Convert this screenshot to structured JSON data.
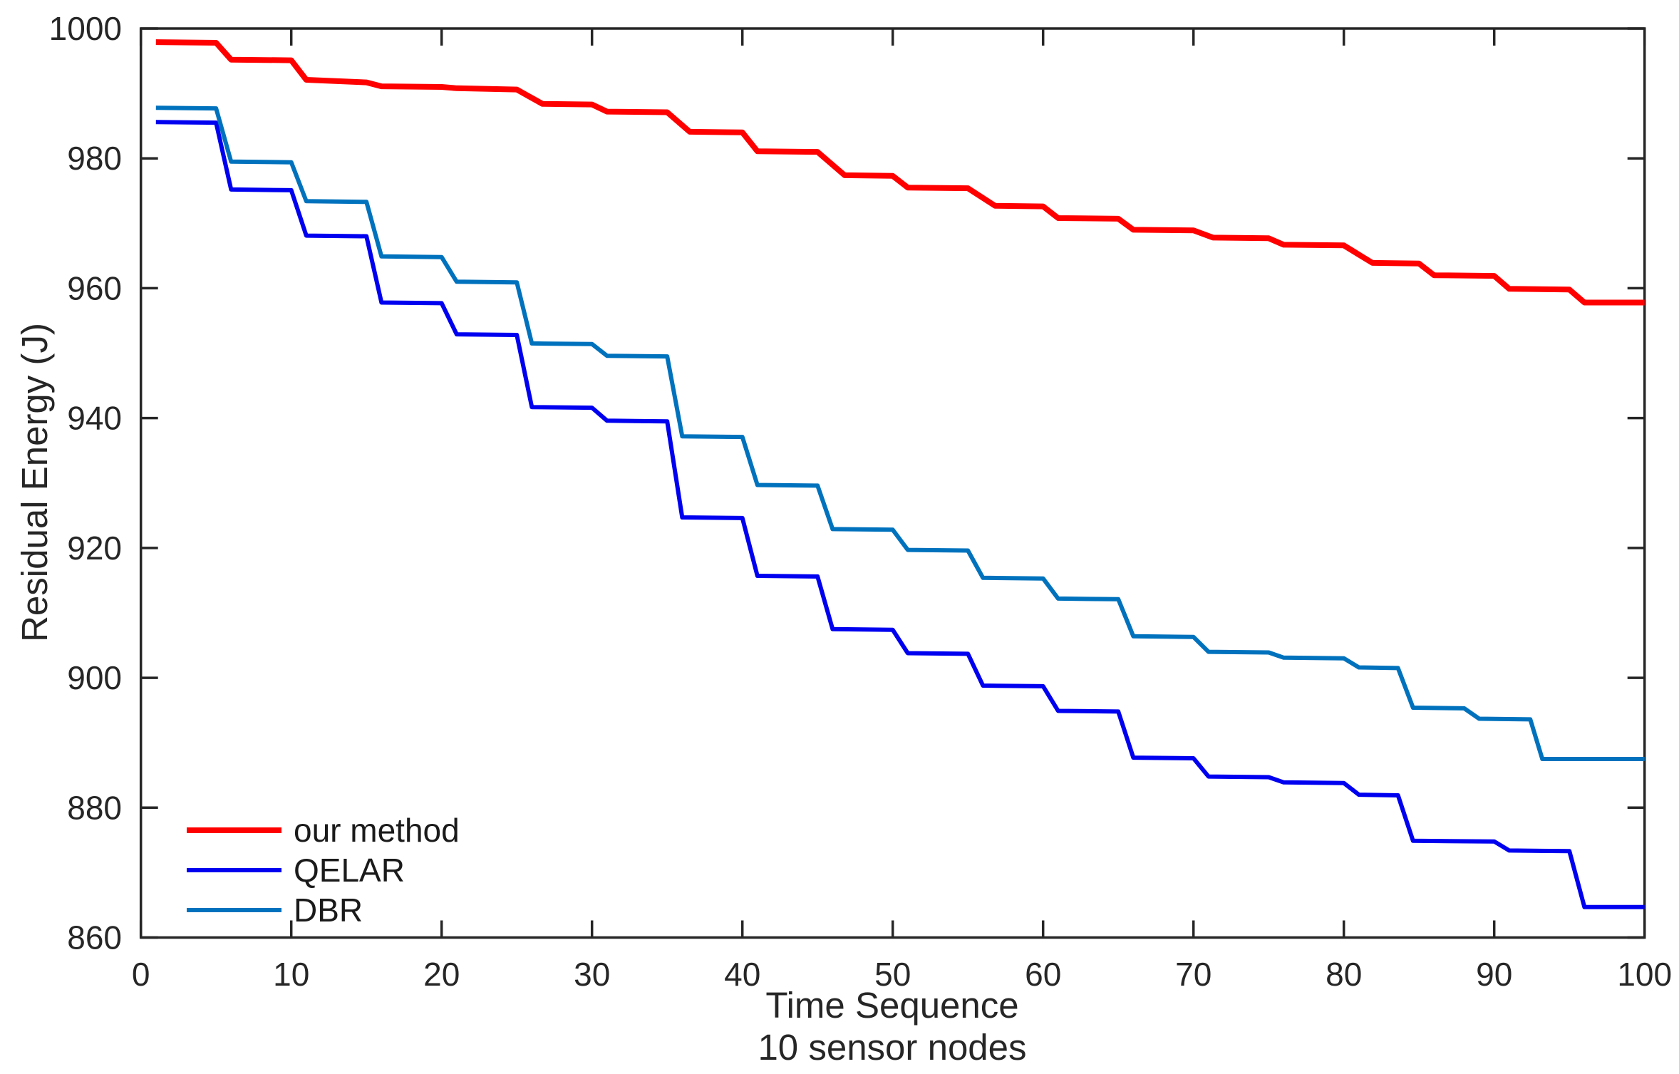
{
  "chart_data": {
    "type": "line",
    "title": "",
    "xlabel": "Time Sequence",
    "xlabel_line2": "10 sensor nodes",
    "ylabel": "Residual Energy (J)",
    "xlim": [
      0,
      100
    ],
    "ylim": [
      860,
      1000
    ],
    "x_ticks": [
      0,
      10,
      20,
      30,
      40,
      50,
      60,
      70,
      80,
      90,
      100
    ],
    "y_ticks": [
      860,
      880,
      900,
      920,
      940,
      960,
      980,
      1000
    ],
    "grid": false,
    "box": true,
    "axis_color": "#262626",
    "background_color": "#ffffff",
    "legend_position": "lower-left-inside",
    "series": [
      {
        "name": "our method",
        "color": "#ff0000",
        "line_width": 8,
        "points": [
          [
            1,
            997.9
          ],
          [
            5,
            997.8
          ],
          [
            6,
            995.2
          ],
          [
            10,
            995.1
          ],
          [
            11,
            992.1
          ],
          [
            15,
            991.7
          ],
          [
            16,
            991.1
          ],
          [
            20,
            991.0
          ],
          [
            21,
            990.8
          ],
          [
            25,
            990.6
          ],
          [
            26.7,
            988.4
          ],
          [
            30,
            988.3
          ],
          [
            31,
            987.2
          ],
          [
            35,
            987.1
          ],
          [
            36.5,
            984.1
          ],
          [
            40,
            984.0
          ],
          [
            41,
            981.1
          ],
          [
            45,
            981.0
          ],
          [
            46.8,
            977.4
          ],
          [
            50,
            977.3
          ],
          [
            51,
            975.5
          ],
          [
            55,
            975.4
          ],
          [
            56.8,
            972.7
          ],
          [
            60,
            972.6
          ],
          [
            61,
            970.8
          ],
          [
            65,
            970.7
          ],
          [
            66,
            969.0
          ],
          [
            70,
            968.9
          ],
          [
            71.3,
            967.8
          ],
          [
            75,
            967.7
          ],
          [
            76,
            966.7
          ],
          [
            80,
            966.6
          ],
          [
            81.9,
            963.9
          ],
          [
            85,
            963.8
          ],
          [
            86,
            962.0
          ],
          [
            90,
            961.9
          ],
          [
            91,
            959.9
          ],
          [
            95,
            959.8
          ],
          [
            96,
            957.8
          ],
          [
            100,
            957.8
          ]
        ]
      },
      {
        "name": "QELAR",
        "color": "#0000f0",
        "line_width": 6,
        "points": [
          [
            1,
            985.6
          ],
          [
            5,
            985.5
          ],
          [
            6,
            975.2
          ],
          [
            10,
            975.1
          ],
          [
            11,
            968.1
          ],
          [
            15,
            968.0
          ],
          [
            16,
            957.8
          ],
          [
            20,
            957.7
          ],
          [
            21,
            952.9
          ],
          [
            25,
            952.8
          ],
          [
            26,
            941.7
          ],
          [
            30,
            941.6
          ],
          [
            31,
            939.6
          ],
          [
            35,
            939.5
          ],
          [
            36,
            924.7
          ],
          [
            40,
            924.6
          ],
          [
            41,
            915.7
          ],
          [
            45,
            915.6
          ],
          [
            46,
            907.5
          ],
          [
            50,
            907.4
          ],
          [
            51,
            903.8
          ],
          [
            55,
            903.7
          ],
          [
            56,
            898.8
          ],
          [
            60,
            898.7
          ],
          [
            61,
            894.9
          ],
          [
            65,
            894.8
          ],
          [
            66,
            887.7
          ],
          [
            70,
            887.6
          ],
          [
            71,
            884.8
          ],
          [
            75,
            884.7
          ],
          [
            76,
            883.9
          ],
          [
            80,
            883.8
          ],
          [
            81,
            882.0
          ],
          [
            83.6,
            881.9
          ],
          [
            84.6,
            874.9
          ],
          [
            90,
            874.8
          ],
          [
            91,
            873.4
          ],
          [
            95,
            873.3
          ],
          [
            96,
            864.7
          ],
          [
            100,
            864.7
          ]
        ]
      },
      {
        "name": "DBR",
        "color": "#0072bd",
        "line_width": 6,
        "points": [
          [
            1,
            987.8
          ],
          [
            5,
            987.7
          ],
          [
            6,
            979.5
          ],
          [
            10,
            979.4
          ],
          [
            11,
            973.4
          ],
          [
            15,
            973.3
          ],
          [
            16,
            964.9
          ],
          [
            20,
            964.8
          ],
          [
            21,
            961.0
          ],
          [
            25,
            960.9
          ],
          [
            26,
            951.5
          ],
          [
            30,
            951.4
          ],
          [
            31,
            949.6
          ],
          [
            35,
            949.5
          ],
          [
            36,
            937.2
          ],
          [
            40,
            937.1
          ],
          [
            41,
            929.7
          ],
          [
            45,
            929.6
          ],
          [
            46,
            922.9
          ],
          [
            50,
            922.8
          ],
          [
            51,
            919.7
          ],
          [
            55,
            919.6
          ],
          [
            56,
            915.4
          ],
          [
            60,
            915.3
          ],
          [
            61,
            912.2
          ],
          [
            65,
            912.1
          ],
          [
            66,
            906.4
          ],
          [
            70,
            906.3
          ],
          [
            71,
            904.0
          ],
          [
            75,
            903.9
          ],
          [
            76,
            903.1
          ],
          [
            80,
            903.0
          ],
          [
            81,
            901.6
          ],
          [
            83.6,
            901.5
          ],
          [
            84.6,
            895.4
          ],
          [
            88,
            895.3
          ],
          [
            89,
            893.7
          ],
          [
            92.4,
            893.6
          ],
          [
            93.2,
            887.5
          ],
          [
            100,
            887.5
          ]
        ]
      }
    ]
  }
}
